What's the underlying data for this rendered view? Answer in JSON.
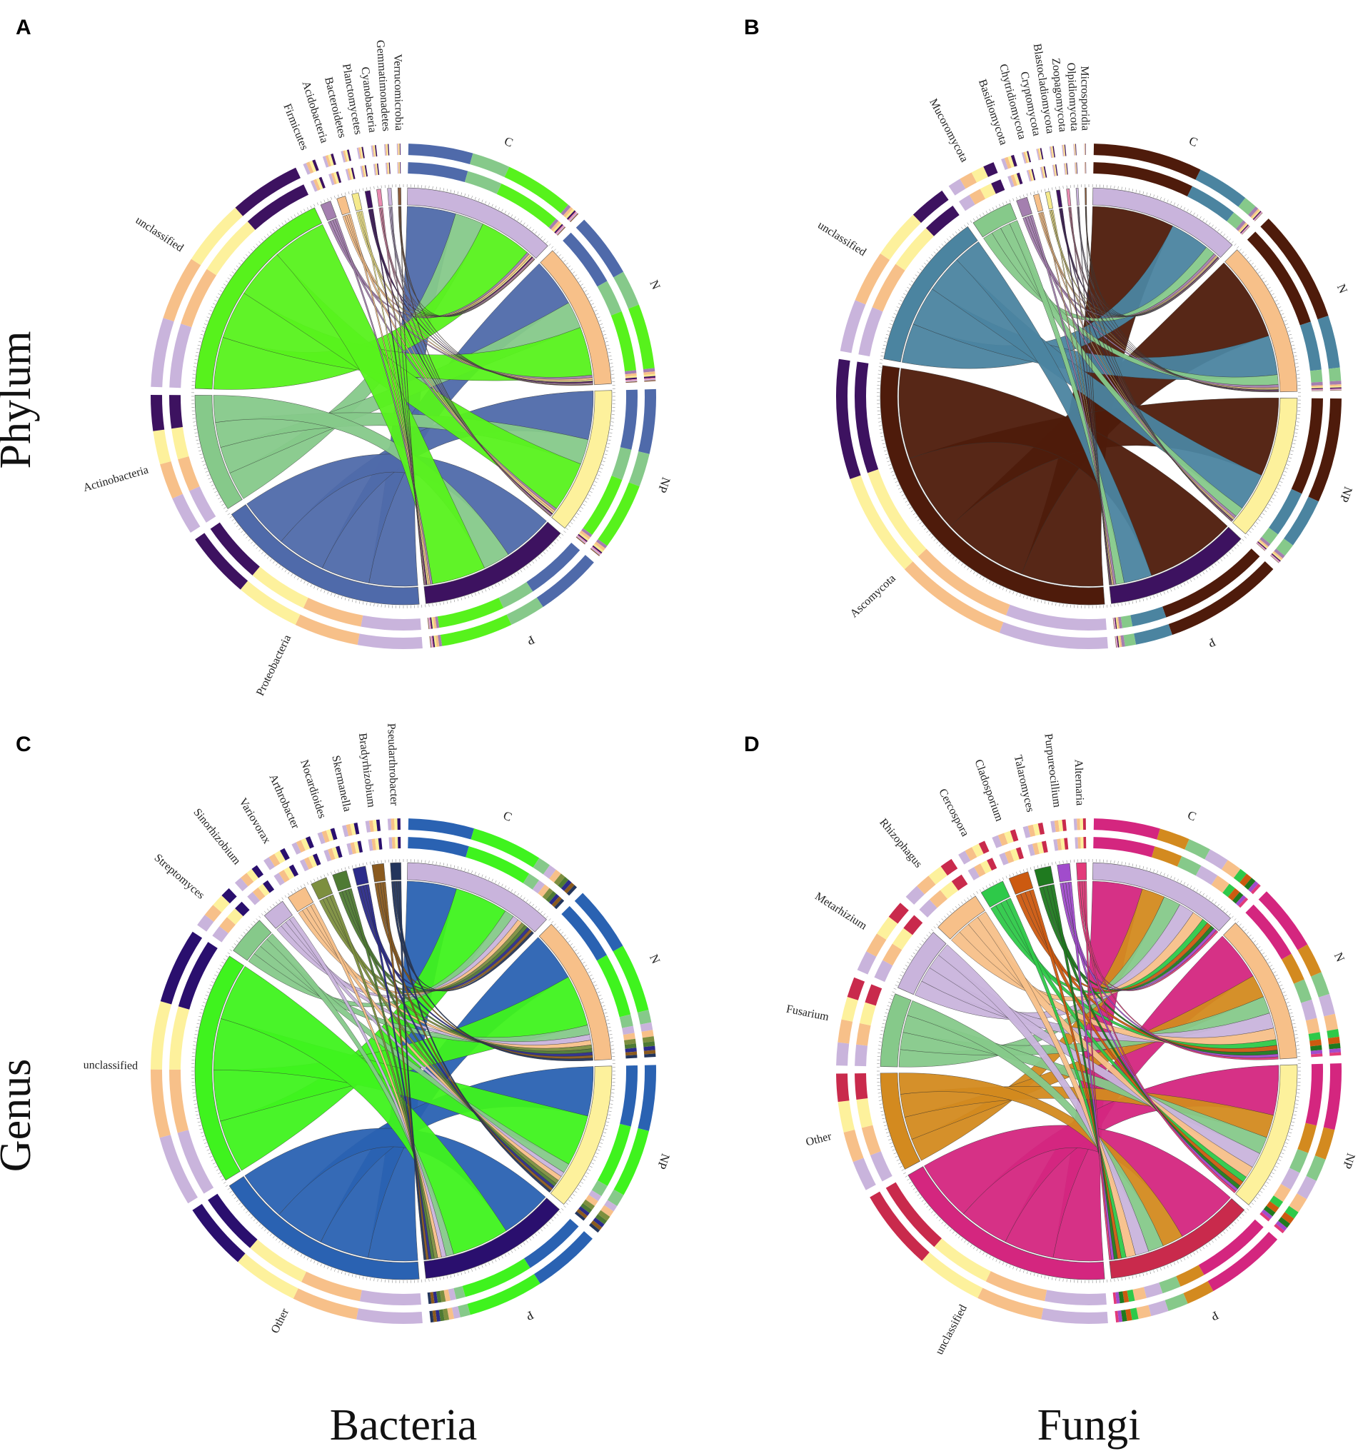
{
  "figure": {
    "row_titles": [
      "Phylum",
      "Genus"
    ],
    "column_titles": [
      "Bacteria",
      "Fungi"
    ]
  },
  "chart_data": [
    {
      "type": "chord",
      "panel": "A",
      "groups": [
        "C",
        "N",
        "NP",
        "P"
      ],
      "group_colors": [
        "#c9b4dc",
        "#f7c089",
        "#fdf19c",
        "#3d1260"
      ],
      "taxa": [
        {
          "name": "Proteobacteria",
          "color": "#4f6aaa",
          "values": [
            27,
            27,
            27,
            28
          ]
        },
        {
          "name": "Actinobacteria",
          "color": "#86c98a",
          "values": [
            16,
            15,
            14,
            15
          ]
        },
        {
          "name": "unclassified",
          "color": "#57f21c",
          "values": [
            29,
            27,
            28,
            30
          ]
        },
        {
          "name": "Firmicutes",
          "color": "#a47faf",
          "values": [
            1.4,
            1.4,
            1.3,
            1.2
          ]
        },
        {
          "name": "Acidobacteria",
          "color": "#f7c089",
          "values": [
            1.2,
            1.1,
            1.2,
            1.0
          ]
        },
        {
          "name": "Bacteroidetes",
          "color": "#f5ea8c",
          "values": [
            0.9,
            0.8,
            0.9,
            0.8
          ]
        },
        {
          "name": "Planctomycetes",
          "color": "#3d1260",
          "values": [
            0.7,
            0.7,
            0.6,
            0.6
          ]
        },
        {
          "name": "Cyanobacteria",
          "color": "#e98bb0",
          "values": [
            0.6,
            0.5,
            0.5,
            0.5
          ]
        },
        {
          "name": "Gemmatimonadetes",
          "color": "#c9b4dc",
          "values": [
            0.5,
            0.5,
            0.5,
            0.4
          ]
        },
        {
          "name": "Verrucomicrobia",
          "color": "#8a5a3a",
          "values": [
            0.4,
            0.4,
            0.4,
            0.3
          ]
        }
      ],
      "shown_labels": [
        "Verrucomicrobia",
        "Gemmatimonadetes",
        "Cyanobacteria",
        "Planctomycetes",
        "Bacteroidetes",
        "Acidobacteria",
        "Firmicutes",
        "Actinobacteria",
        "Proteobacteria",
        "unclassified"
      ]
    },
    {
      "type": "chord",
      "panel": "B",
      "groups": [
        "C",
        "N",
        "NP",
        "P"
      ],
      "group_colors": [
        "#c9b4dc",
        "#f7c089",
        "#fdf19c",
        "#3d1260"
      ],
      "taxa": [
        {
          "name": "Ascomycota",
          "color": "#4e1b0b",
          "values": [
            50,
            52,
            48,
            55
          ]
        },
        {
          "name": "unclassified",
          "color": "#4b84a0",
          "values": [
            24,
            24,
            23,
            17
          ]
        },
        {
          "name": "Mucoromycota",
          "color": "#86c98a",
          "values": [
            6,
            6,
            6,
            5
          ]
        },
        {
          "name": "Basidiomycota",
          "color": "#a47faf",
          "values": [
            1.6,
            1.6,
            1.5,
            1.4
          ]
        },
        {
          "name": "Chytridiomycota",
          "color": "#f7c089",
          "values": [
            0.8,
            0.8,
            0.8,
            0.7
          ]
        },
        {
          "name": "Cryptomycota",
          "color": "#f5ea8c",
          "values": [
            0.6,
            0.6,
            0.6,
            0.6
          ]
        },
        {
          "name": "Blastocladiomycota",
          "color": "#3d1260",
          "values": [
            0.5,
            0.5,
            0.5,
            0.5
          ]
        },
        {
          "name": "Zoopagomycota",
          "color": "#e98bb0",
          "values": [
            0.4,
            0.4,
            0.4,
            0.4
          ]
        },
        {
          "name": "Olpidiomycota",
          "color": "#c9b4dc",
          "values": [
            0.3,
            0.3,
            0.3,
            0.3
          ]
        },
        {
          "name": "Microsporidia",
          "color": "#8a5a3a",
          "values": [
            0.2,
            0.2,
            0.2,
            0.2
          ]
        }
      ],
      "shown_labels": [
        "Microsporidia",
        "Olpidiomycota",
        "Zoopagomycota",
        "Blastocladiomycota",
        "Cryptomycota",
        "Chytridiomycota",
        "Basidiomycota",
        "Mucoromycota",
        "unclassified",
        "Ascomycota"
      ]
    },
    {
      "type": "chord",
      "panel": "C",
      "groups": [
        "C",
        "N",
        "NP",
        "P"
      ],
      "group_colors": [
        "#c9b4dc",
        "#f7c089",
        "#fdf19c",
        "#2a0f6e"
      ],
      "taxa": [
        {
          "name": "Other",
          "color": "#2a62b2",
          "values": [
            26,
            26,
            26,
            27
          ]
        },
        {
          "name": "unclassified",
          "color": "#3ff31e",
          "values": [
            28,
            27,
            27,
            30
          ]
        },
        {
          "name": "Streptomyces",
          "color": "#86c98a",
          "values": [
            5,
            5,
            5,
            4
          ]
        },
        {
          "name": "Sinorhizobium",
          "color": "#c9b4dc",
          "values": [
            3,
            3,
            2.5,
            2.5
          ]
        },
        {
          "name": "Variovorax",
          "color": "#f7c089",
          "values": [
            2.5,
            2.5,
            2.5,
            2
          ]
        },
        {
          "name": "Arthrobacter",
          "color": "#7d8f3f",
          "values": [
            2,
            2,
            2,
            1.8
          ]
        },
        {
          "name": "Nocardioides",
          "color": "#4e7a33",
          "values": [
            1.8,
            1.8,
            1.7,
            1.6
          ]
        },
        {
          "name": "Skermanella",
          "color": "#2b2b8a",
          "values": [
            1.6,
            1.6,
            1.5,
            1.4
          ]
        },
        {
          "name": "Bradyrhizobium",
          "color": "#8a5a1e",
          "values": [
            1.5,
            1.4,
            1.4,
            1.3
          ]
        },
        {
          "name": "Pseudarthrobacter",
          "color": "#23355c",
          "values": [
            1.3,
            1.3,
            1.2,
            1.2
          ]
        }
      ],
      "shown_labels": [
        "Pseudarthrobacter",
        "Bradyrhizobium",
        "Skermanella",
        "Nocardioides",
        "Arthrobacter",
        "Variovorax",
        "Sinorhizobium",
        "Streptomyces",
        "Other",
        "unclassified"
      ]
    },
    {
      "type": "chord",
      "panel": "D",
      "groups": [
        "C",
        "N",
        "NP",
        "P"
      ],
      "group_colors": [
        "#c9b4dc",
        "#f7c089",
        "#fdf19c",
        "#c92a4c"
      ],
      "taxa": [
        {
          "name": "unclassified",
          "color": "#d4267f",
          "values": [
            26,
            26,
            26,
            32
          ]
        },
        {
          "name": "Other",
          "color": "#d38a1f",
          "values": [
            12,
            12,
            12,
            11
          ]
        },
        {
          "name": "Fusarium",
          "color": "#86c98a",
          "values": [
            9,
            9,
            9,
            8
          ]
        },
        {
          "name": "Metarhizium",
          "color": "#c9b4dc",
          "values": [
            8,
            8,
            8,
            7
          ]
        },
        {
          "name": "Rhizophagus",
          "color": "#f7c089",
          "values": [
            6,
            6,
            6,
            5
          ]
        },
        {
          "name": "Cercospora",
          "color": "#2ec949",
          "values": [
            3,
            3,
            3,
            2.5
          ]
        },
        {
          "name": "Cladosporium",
          "color": "#cc5a10",
          "values": [
            2.5,
            2.5,
            2.5,
            2
          ]
        },
        {
          "name": "Talaromyces",
          "color": "#1f7a1f",
          "values": [
            2,
            2,
            2,
            1.8
          ]
        },
        {
          "name": "Purpureocillium",
          "color": "#a14ccc",
          "values": [
            1.5,
            1.5,
            1.5,
            1.4
          ]
        },
        {
          "name": "Alternaria",
          "color": "#e23a7a",
          "values": [
            1.2,
            1.2,
            1.2,
            1.1
          ]
        }
      ],
      "shown_labels": [
        "Alternaria",
        "Purpureocillium",
        "Talaromyces",
        "Cladosporium",
        "Cercospora",
        "Rhizophagus",
        "Metarhizium",
        "Fusarium",
        "Other",
        "unclassified"
      ]
    }
  ]
}
